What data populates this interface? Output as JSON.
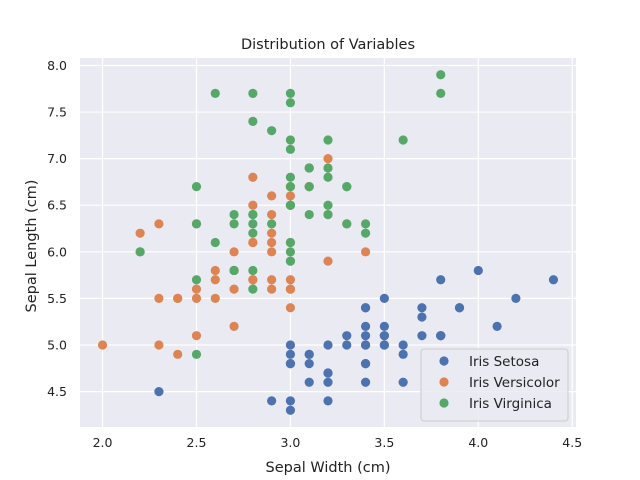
{
  "chart_data": {
    "type": "scatter",
    "title": "Distribution of Variables",
    "xlabel": "Sepal Width (cm)",
    "ylabel": "Sepal Length (cm)",
    "xlim": [
      1.88,
      4.52
    ],
    "ylim": [
      4.12,
      8.08
    ],
    "x_ticks": [
      2.0,
      2.5,
      3.0,
      3.5,
      4.0,
      4.5
    ],
    "y_ticks": [
      4.5,
      5.0,
      5.5,
      6.0,
      6.5,
      7.0,
      7.5,
      8.0
    ],
    "x_tick_labels": [
      "2.0",
      "2.5",
      "3.0",
      "3.5",
      "4.0",
      "4.5"
    ],
    "y_tick_labels": [
      "4.5",
      "5.0",
      "5.5",
      "6.0",
      "6.5",
      "7.0",
      "7.5",
      "8.0"
    ],
    "grid": true,
    "legend_position": "lower-right",
    "background_color": "#eaeaf2",
    "grid_color": "#ffffff",
    "series": [
      {
        "name": "Iris Setosa",
        "color": "#4c72b0",
        "points": [
          [
            3.5,
            5.1
          ],
          [
            3.0,
            4.9
          ],
          [
            3.2,
            4.7
          ],
          [
            3.1,
            4.6
          ],
          [
            3.6,
            5.0
          ],
          [
            3.9,
            5.4
          ],
          [
            3.4,
            4.6
          ],
          [
            3.4,
            5.0
          ],
          [
            2.9,
            4.4
          ],
          [
            3.1,
            4.9
          ],
          [
            3.7,
            5.4
          ],
          [
            3.4,
            4.8
          ],
          [
            3.0,
            4.8
          ],
          [
            3.0,
            4.3
          ],
          [
            4.0,
            5.8
          ],
          [
            4.4,
            5.7
          ],
          [
            3.9,
            5.4
          ],
          [
            3.5,
            5.1
          ],
          [
            3.8,
            5.7
          ],
          [
            3.8,
            5.1
          ],
          [
            3.4,
            5.4
          ],
          [
            3.7,
            5.1
          ],
          [
            3.6,
            4.6
          ],
          [
            3.3,
            5.1
          ],
          [
            3.4,
            4.8
          ],
          [
            3.0,
            5.0
          ],
          [
            3.4,
            5.0
          ],
          [
            3.5,
            5.2
          ],
          [
            3.4,
            5.2
          ],
          [
            3.2,
            4.7
          ],
          [
            3.1,
            4.8
          ],
          [
            3.4,
            5.4
          ],
          [
            4.1,
            5.2
          ],
          [
            4.2,
            5.5
          ],
          [
            3.1,
            4.9
          ],
          [
            3.2,
            5.0
          ],
          [
            3.5,
            5.5
          ],
          [
            3.6,
            4.9
          ],
          [
            3.0,
            4.4
          ],
          [
            3.4,
            5.1
          ],
          [
            3.5,
            5.0
          ],
          [
            2.3,
            4.5
          ],
          [
            3.2,
            4.4
          ],
          [
            3.5,
            5.0
          ],
          [
            3.8,
            5.1
          ],
          [
            3.0,
            4.8
          ],
          [
            3.8,
            5.1
          ],
          [
            3.2,
            4.6
          ],
          [
            3.7,
            5.3
          ],
          [
            3.3,
            5.0
          ]
        ]
      },
      {
        "name": "Iris Versicolor",
        "color": "#dd8452",
        "points": [
          [
            3.2,
            7.0
          ],
          [
            3.2,
            6.4
          ],
          [
            3.1,
            6.9
          ],
          [
            2.3,
            5.5
          ],
          [
            2.8,
            6.5
          ],
          [
            2.8,
            5.7
          ],
          [
            3.3,
            6.3
          ],
          [
            2.4,
            4.9
          ],
          [
            2.9,
            6.6
          ],
          [
            2.7,
            5.2
          ],
          [
            2.0,
            5.0
          ],
          [
            3.0,
            5.9
          ],
          [
            2.2,
            6.0
          ],
          [
            2.9,
            6.1
          ],
          [
            2.9,
            5.6
          ],
          [
            3.1,
            6.7
          ],
          [
            3.0,
            5.6
          ],
          [
            2.7,
            5.8
          ],
          [
            2.2,
            6.2
          ],
          [
            2.5,
            5.6
          ],
          [
            3.2,
            5.9
          ],
          [
            2.8,
            6.1
          ],
          [
            2.5,
            6.3
          ],
          [
            2.8,
            6.1
          ],
          [
            2.9,
            6.4
          ],
          [
            3.0,
            6.6
          ],
          [
            2.8,
            6.8
          ],
          [
            3.0,
            6.7
          ],
          [
            2.9,
            6.0
          ],
          [
            2.6,
            5.7
          ],
          [
            2.4,
            5.5
          ],
          [
            2.4,
            5.5
          ],
          [
            2.7,
            5.8
          ],
          [
            2.7,
            6.0
          ],
          [
            3.0,
            5.4
          ],
          [
            3.4,
            6.0
          ],
          [
            3.1,
            6.7
          ],
          [
            2.3,
            6.3
          ],
          [
            3.0,
            5.6
          ],
          [
            2.5,
            5.5
          ],
          [
            2.6,
            5.5
          ],
          [
            3.0,
            6.1
          ],
          [
            2.6,
            5.8
          ],
          [
            2.3,
            5.0
          ],
          [
            2.7,
            5.6
          ],
          [
            3.0,
            5.7
          ],
          [
            2.9,
            5.7
          ],
          [
            2.9,
            6.2
          ],
          [
            2.5,
            5.1
          ],
          [
            2.8,
            5.7
          ]
        ]
      },
      {
        "name": "Iris Virginica",
        "color": "#55a868",
        "points": [
          [
            3.3,
            6.3
          ],
          [
            2.7,
            5.8
          ],
          [
            3.0,
            7.1
          ],
          [
            2.9,
            6.3
          ],
          [
            3.0,
            6.5
          ],
          [
            3.0,
            7.6
          ],
          [
            2.5,
            4.9
          ],
          [
            2.9,
            7.3
          ],
          [
            2.5,
            6.7
          ],
          [
            3.6,
            7.2
          ],
          [
            3.2,
            6.5
          ],
          [
            2.7,
            6.4
          ],
          [
            3.0,
            6.8
          ],
          [
            2.5,
            5.7
          ],
          [
            2.8,
            5.8
          ],
          [
            3.2,
            6.4
          ],
          [
            3.0,
            6.5
          ],
          [
            3.8,
            7.7
          ],
          [
            2.6,
            7.7
          ],
          [
            2.2,
            6.0
          ],
          [
            3.2,
            6.9
          ],
          [
            2.8,
            5.6
          ],
          [
            2.8,
            7.7
          ],
          [
            2.7,
            6.3
          ],
          [
            3.3,
            6.7
          ],
          [
            3.2,
            7.2
          ],
          [
            2.8,
            6.2
          ],
          [
            3.0,
            6.1
          ],
          [
            2.8,
            6.4
          ],
          [
            3.0,
            7.2
          ],
          [
            2.8,
            7.4
          ],
          [
            3.8,
            7.9
          ],
          [
            2.8,
            6.4
          ],
          [
            2.8,
            6.3
          ],
          [
            2.6,
            6.1
          ],
          [
            3.0,
            7.7
          ],
          [
            3.4,
            6.3
          ],
          [
            3.1,
            6.4
          ],
          [
            3.0,
            6.0
          ],
          [
            3.1,
            6.9
          ],
          [
            3.1,
            6.7
          ],
          [
            3.1,
            6.9
          ],
          [
            2.7,
            5.8
          ],
          [
            3.2,
            6.8
          ],
          [
            3.3,
            6.7
          ],
          [
            3.0,
            6.7
          ],
          [
            2.5,
            6.3
          ],
          [
            3.0,
            6.5
          ],
          [
            3.4,
            6.2
          ],
          [
            3.0,
            5.9
          ]
        ]
      }
    ]
  }
}
